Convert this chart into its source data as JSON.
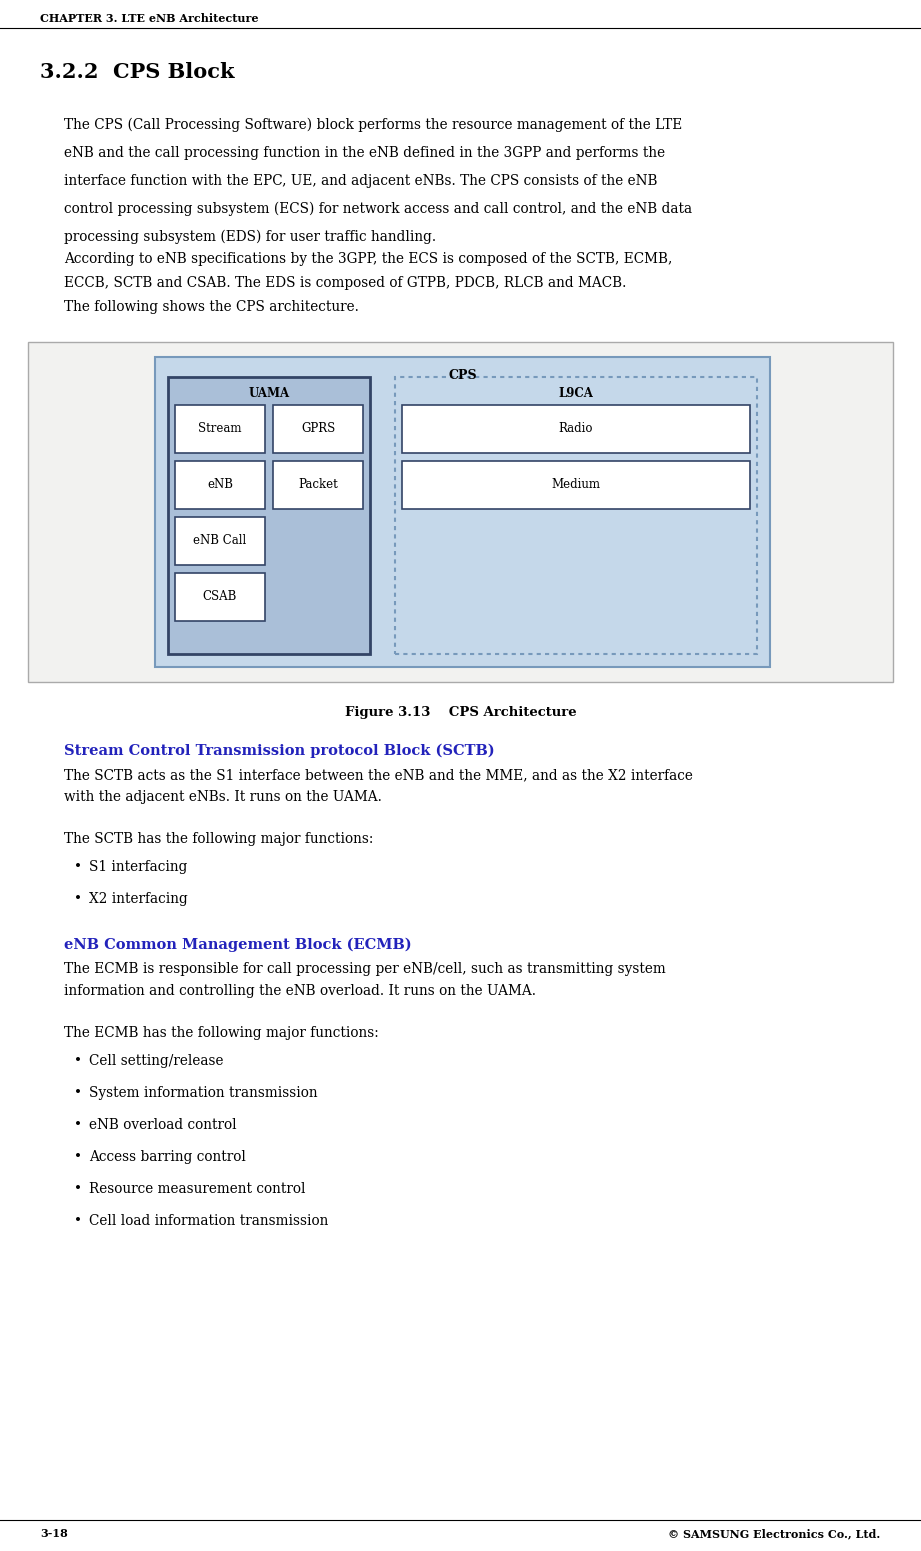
{
  "page_bg": "#ffffff",
  "header_text": "CHAPTER 3. LTE eNB Architecture",
  "section_title": "3.2.2  CPS Block",
  "section_title_size": 15,
  "body_text_size": 9.5,
  "body_indent": 0.07,
  "paragraph1_lines": [
    "The CPS (Call Processing Software) block performs the resource management of the LTE",
    "eNB and the call processing function in the eNB defined in the 3GPP and performs the",
    "interface function with the EPC, UE, and adjacent eNBs. The CPS consists of the eNB",
    "control processing subsystem (ECS) for network access and call control, and the eNB data",
    "processing subsystem (EDS) for user traffic handling."
  ],
  "paragraph2_lines": [
    "According to eNB specifications by the 3GPP, the ECS is composed of the SCTB, ECMB,",
    "ECCB, SCTB and CSAB. The EDS is composed of GTPB, PDCB, RLCB and MACB.",
    "The following shows the CPS architecture."
  ],
  "figure_caption": "Figure 3.13    CPS Architecture",
  "section2_title": "Stream Control Transmission protocol Block (SCTB)",
  "section2_color": "#2222bb",
  "section2_para1_lines": [
    "The SCTB acts as the S1 interface between the eNB and the MME, and as the X2 interface",
    "with the adjacent eNBs. It runs on the UAMA."
  ],
  "section2_para2": "The SCTB has the following major functions:",
  "section2_bullets": [
    "S1 interfacing",
    "X2 interfacing"
  ],
  "section3_title": "eNB Common Management Block (ECMB)",
  "section3_color": "#2222bb",
  "section3_para1_lines": [
    "The ECMB is responsible for call processing per eNB/cell, such as transmitting system",
    "information and controlling the eNB overload. It runs on the UAMA."
  ],
  "section3_para2": "The ECMB has the following major functions:",
  "section3_bullets": [
    "Cell setting/release",
    "System information transmission",
    "eNB overload control",
    "Access barring control",
    "Resource measurement control",
    "Cell load information transmission"
  ],
  "footer_left": "3-18",
  "footer_right": "© SAMSUNG Electronics Co., Ltd.",
  "diagram": {
    "outer_bg": "#f2f2f0",
    "outer_border": "#aaaaaa",
    "cps_bg": "#c5d8ea",
    "cps_border": "#7799bb",
    "cps_label": "CPS",
    "uama_bg": "#aabfd8",
    "uama_border": "#334466",
    "uama_label": "UAMA",
    "l9ca_bg": "#c5d8ea",
    "l9ca_border": "#7799bb",
    "l9ca_label": "L9CA",
    "box_bg": "#ffffff",
    "box_border": "#334466",
    "boxes_uama": [
      {
        "label": "Stream",
        "col": 0,
        "row": 0
      },
      {
        "label": "GPRS",
        "col": 1,
        "row": 0
      },
      {
        "label": "eNB",
        "col": 0,
        "row": 1
      },
      {
        "label": "Packet",
        "col": 1,
        "row": 1
      },
      {
        "label": "eNB Call",
        "col": 0,
        "row": 2
      },
      {
        "label": "CSAB",
        "col": 0,
        "row": 3
      }
    ],
    "boxes_l9ca": [
      {
        "label": "Radio",
        "row": 0
      },
      {
        "label": "Medium",
        "row": 1
      }
    ]
  }
}
